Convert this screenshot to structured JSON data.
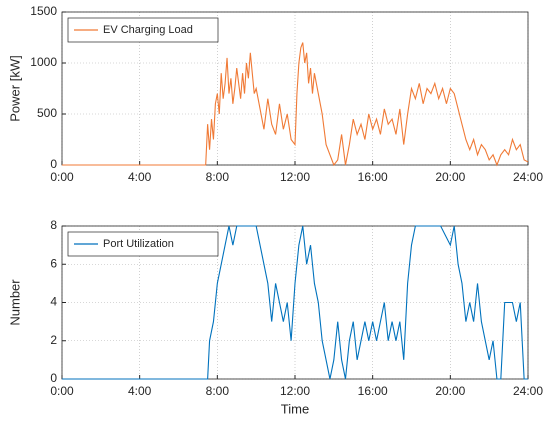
{
  "chart_data": [
    {
      "type": "line",
      "ylabel": "Power [kW]",
      "xlim": [
        0,
        24
      ],
      "ylim": [
        0,
        1500
      ],
      "xticks": [
        {
          "value": 0,
          "label": "0:00"
        },
        {
          "value": 4,
          "label": "4:00"
        },
        {
          "value": 8,
          "label": "8:00"
        },
        {
          "value": 12,
          "label": "12:00"
        },
        {
          "value": 16,
          "label": "16:00"
        },
        {
          "value": 20,
          "label": "20:00"
        },
        {
          "value": 24,
          "label": "24:00"
        }
      ],
      "yticks": [
        0,
        500,
        1000,
        1500
      ],
      "grid": true,
      "legend": "upper-left",
      "x": [
        0,
        7.4,
        7.5,
        7.6,
        7.7,
        7.8,
        7.9,
        8.0,
        8.1,
        8.2,
        8.3,
        8.4,
        8.5,
        8.6,
        8.7,
        8.8,
        8.9,
        9.0,
        9.1,
        9.2,
        9.3,
        9.4,
        9.5,
        9.6,
        9.7,
        9.8,
        9.9,
        10.0,
        10.2,
        10.4,
        10.6,
        10.8,
        11.0,
        11.2,
        11.4,
        11.6,
        11.8,
        12.0,
        12.1,
        12.2,
        12.3,
        12.4,
        12.5,
        12.6,
        12.7,
        12.8,
        12.9,
        13.0,
        13.2,
        13.4,
        13.6,
        13.8,
        14.0,
        14.2,
        14.4,
        14.6,
        14.8,
        15.0,
        15.2,
        15.4,
        15.6,
        15.8,
        16.0,
        16.2,
        16.4,
        16.6,
        16.8,
        17.0,
        17.2,
        17.4,
        17.6,
        17.8,
        18.0,
        18.2,
        18.4,
        18.6,
        18.8,
        19.0,
        19.2,
        19.4,
        19.6,
        19.8,
        20.0,
        20.2,
        20.4,
        20.6,
        20.8,
        21.0,
        21.2,
        21.4,
        21.6,
        21.8,
        22.0,
        22.2,
        22.4,
        22.6,
        22.8,
        23.0,
        23.2,
        23.4,
        23.6,
        23.8,
        24.0
      ],
      "series": [
        {
          "name": "EV Charging Load",
          "color": "#f07a36",
          "values": [
            0,
            0,
            400,
            150,
            450,
            250,
            600,
            700,
            500,
            900,
            650,
            800,
            1050,
            700,
            850,
            600,
            750,
            950,
            800,
            650,
            900,
            700,
            1000,
            850,
            1100,
            900,
            700,
            750,
            550,
            350,
            650,
            400,
            300,
            600,
            350,
            500,
            250,
            200,
            700,
            1000,
            1150,
            1200,
            1000,
            1100,
            800,
            950,
            700,
            900,
            700,
            500,
            200,
            100,
            0,
            50,
            300,
            0,
            200,
            450,
            300,
            400,
            250,
            500,
            350,
            450,
            300,
            550,
            400,
            450,
            300,
            550,
            200,
            500,
            750,
            650,
            800,
            600,
            750,
            700,
            800,
            650,
            750,
            600,
            750,
            700,
            550,
            400,
            250,
            150,
            250,
            100,
            200,
            150,
            50,
            100,
            0,
            100,
            150,
            100,
            250,
            150,
            200,
            50,
            30
          ]
        }
      ]
    },
    {
      "type": "line",
      "ylabel": "Number",
      "xlabel": "Time",
      "xlim": [
        0,
        24
      ],
      "ylim": [
        0,
        8
      ],
      "xticks": [
        {
          "value": 0,
          "label": "0:00"
        },
        {
          "value": 4,
          "label": "4:00"
        },
        {
          "value": 8,
          "label": "8:00"
        },
        {
          "value": 12,
          "label": "12:00"
        },
        {
          "value": 16,
          "label": "16:00"
        },
        {
          "value": 20,
          "label": "20:00"
        },
        {
          "value": 24,
          "label": "24:00"
        }
      ],
      "yticks": [
        0,
        2,
        4,
        6,
        8
      ],
      "grid": true,
      "legend": "upper-left",
      "x": [
        0,
        7.5,
        7.6,
        7.8,
        8.0,
        8.2,
        8.4,
        8.6,
        8.8,
        9.0,
        9.5,
        10.0,
        10.2,
        10.4,
        10.6,
        10.8,
        11.0,
        11.2,
        11.4,
        11.6,
        11.8,
        12.0,
        12.2,
        12.4,
        12.6,
        12.8,
        13.0,
        13.2,
        13.4,
        13.6,
        13.8,
        14.0,
        14.2,
        14.4,
        14.6,
        14.8,
        15.0,
        15.2,
        15.4,
        15.6,
        15.8,
        16.0,
        16.2,
        16.4,
        16.6,
        16.8,
        17.0,
        17.2,
        17.4,
        17.6,
        17.8,
        18.0,
        18.2,
        19.0,
        19.5,
        20.0,
        20.2,
        20.4,
        20.6,
        20.8,
        21.0,
        21.2,
        21.4,
        21.6,
        21.8,
        22.0,
        22.2,
        22.4,
        22.6,
        22.8,
        23.2,
        23.4,
        23.6,
        23.8,
        24.0
      ],
      "series": [
        {
          "name": "Port Utilization",
          "color": "#0072bd",
          "values": [
            0,
            0,
            2,
            3,
            5,
            6,
            7,
            8,
            7,
            8,
            8,
            8,
            7,
            6,
            5,
            3,
            5,
            4,
            3,
            4,
            2,
            5,
            7,
            8,
            6,
            7,
            5,
            4,
            2,
            1,
            0,
            1,
            3,
            1,
            0,
            2,
            3,
            1,
            2,
            3,
            2,
            3,
            2,
            3,
            4,
            2,
            3,
            2,
            3,
            1,
            5,
            7,
            8,
            8,
            8,
            7,
            8,
            6,
            5,
            3,
            4,
            3,
            5,
            3,
            2,
            1,
            2,
            0,
            0,
            4,
            4,
            3,
            4,
            0,
            0
          ]
        }
      ]
    }
  ]
}
